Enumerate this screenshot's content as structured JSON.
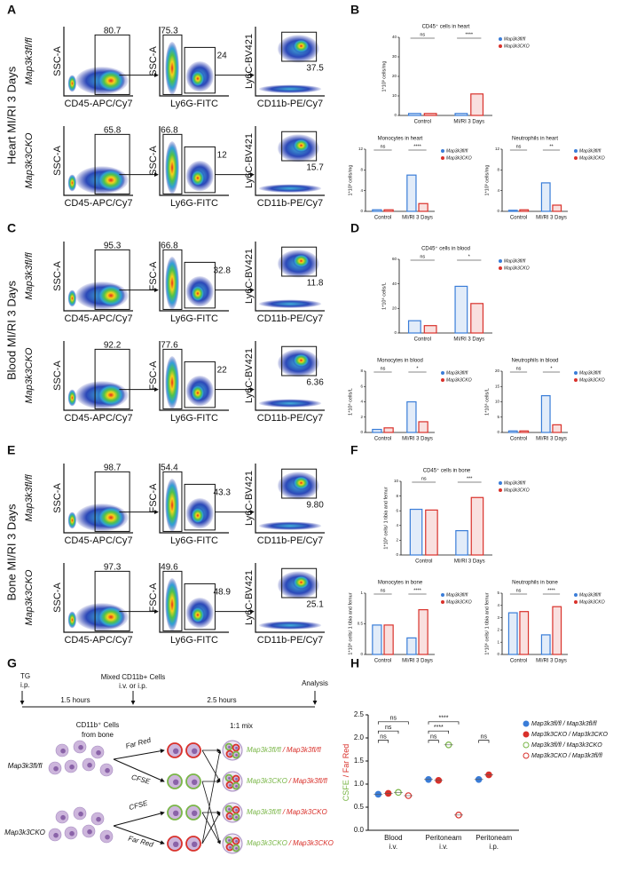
{
  "panel_letters": [
    "A",
    "B",
    "C",
    "D",
    "E",
    "F",
    "G",
    "H"
  ],
  "flow": [
    {
      "tissue": "Heart MI/RI 3 Days",
      "genotypes": [
        "Map3k3fl/fl",
        "Map3k3CKO"
      ],
      "xlabels": [
        "CD45-APC/Cy7",
        "Ly6G-FITC",
        "CD11b-PE/Cy7"
      ],
      "ylabels": [
        "SSC-A",
        "SSC-A",
        "Ly6C-BV421"
      ],
      "gates": [
        [
          [
            "80.7"
          ],
          [
            "75.3",
            "24"
          ],
          [
            "37.5"
          ]
        ],
        [
          [
            "65.8"
          ],
          [
            "66.8",
            "12"
          ],
          [
            "15.7"
          ]
        ]
      ]
    },
    {
      "tissue": "Blood MI/RI 3 Days",
      "genotypes": [
        "Map3k3fl/fl",
        "Map3k3CKO"
      ],
      "xlabels": [
        "CD45-APC/Cy7",
        "Ly6G-FITC",
        "CD11b-PE/Cy7"
      ],
      "ylabels": [
        "SSC-A",
        "FSC-A",
        "Ly6C-BV421"
      ],
      "gates": [
        [
          [
            "95.3"
          ],
          [
            "66.8",
            "32.8"
          ],
          [
            "11.8"
          ]
        ],
        [
          [
            "92.2"
          ],
          [
            "77.6",
            "22"
          ],
          [
            "6.36"
          ]
        ]
      ]
    },
    {
      "tissue": "Bone MI/RI 3 Days",
      "genotypes": [
        "Map3k3fl/fl",
        "Map3k3CKO"
      ],
      "xlabels": [
        "CD45-APC/Cy7",
        "Ly6G-FITC",
        "CD11b-PE/Cy7"
      ],
      "ylabels": [
        "SSC-A",
        "FSC-A",
        "Ly6C-BV421"
      ],
      "gates": [
        [
          [
            "98.7"
          ],
          [
            "54.4",
            "43.3"
          ],
          [
            "9.80"
          ]
        ],
        [
          [
            "97.3"
          ],
          [
            "49.6",
            "48.9"
          ],
          [
            "25.1"
          ]
        ]
      ]
    }
  ],
  "chart_data": [
    {
      "type": "bar",
      "title": "CD45⁺ cells in heart",
      "ylabel": "1*10³ cells/mg",
      "categories": [
        "Control",
        "MI/RI 3 Days"
      ],
      "series": [
        {
          "name": "Map3k3fl/fl",
          "color": "#3a7dd8",
          "values": [
            1,
            1
          ]
        },
        {
          "name": "Map3k3CKO",
          "color": "#d9312b",
          "values": [
            1,
            11
          ]
        }
      ],
      "ylim": [
        0,
        40
      ],
      "yticks": [
        0,
        10,
        20,
        30,
        40
      ],
      "significance": [
        "ns",
        "****"
      ]
    },
    {
      "type": "bar",
      "title": "Monocytes in heart",
      "ylabel": "1*10³ cells/mg",
      "categories": [
        "Control",
        "MI/RI 3 Days"
      ],
      "series": [
        {
          "name": "Map3k3fl/fl",
          "color": "#3a7dd8",
          "values": [
            0.3,
            7
          ]
        },
        {
          "name": "Map3k3CKO",
          "color": "#d9312b",
          "values": [
            0.3,
            1.5
          ]
        }
      ],
      "ylim": [
        0,
        12
      ],
      "yticks": [
        0,
        4,
        8,
        12
      ],
      "significance": [
        "ns",
        "****"
      ]
    },
    {
      "type": "bar",
      "title": "Neutrophils in heart",
      "ylabel": "1*10³ cells/mg",
      "categories": [
        "Control",
        "MI/RI 3 Days"
      ],
      "series": [
        {
          "name": "Map3k3fl/fl",
          "color": "#3a7dd8",
          "values": [
            0.2,
            5.5
          ]
        },
        {
          "name": "Map3k3CKO",
          "color": "#d9312b",
          "values": [
            0.3,
            1.2
          ]
        }
      ],
      "ylim": [
        0,
        12
      ],
      "yticks": [
        0,
        4,
        8,
        12
      ],
      "significance": [
        "ns",
        "**"
      ]
    },
    {
      "type": "bar",
      "title": "CD45⁺ cells in blood",
      "ylabel": "1*10⁶ cells/L",
      "categories": [
        "Control",
        "MI/RI 3 Days"
      ],
      "series": [
        {
          "name": "Map3k3fl/fl",
          "color": "#3a7dd8",
          "values": [
            10,
            38
          ]
        },
        {
          "name": "Map3k3CKO",
          "color": "#d9312b",
          "values": [
            6,
            24
          ]
        }
      ],
      "ylim": [
        0,
        60
      ],
      "yticks": [
        0,
        20,
        40,
        60
      ],
      "significance": [
        "ns",
        "*"
      ]
    },
    {
      "type": "bar",
      "title": "Monocytes in blood",
      "ylabel": "1*10⁶ cells/L",
      "categories": [
        "Control",
        "MI/RI 3 Days"
      ],
      "series": [
        {
          "name": "Map3k3fl/fl",
          "color": "#3a7dd8",
          "values": [
            0.4,
            4
          ]
        },
        {
          "name": "Map3k3CKO",
          "color": "#d9312b",
          "values": [
            0.6,
            1.4
          ]
        }
      ],
      "ylim": [
        0,
        8
      ],
      "yticks": [
        0,
        2,
        4,
        6,
        8
      ],
      "significance": [
        "ns",
        "*"
      ]
    },
    {
      "type": "bar",
      "title": "Neutrophils in blood",
      "ylabel": "1*10⁶ cells/L",
      "categories": [
        "Control",
        "MI/RI 3 Days"
      ],
      "series": [
        {
          "name": "Map3k3fl/fl",
          "color": "#3a7dd8",
          "values": [
            0.5,
            12
          ]
        },
        {
          "name": "Map3k3CKO",
          "color": "#d9312b",
          "values": [
            0.5,
            2.5
          ]
        }
      ],
      "ylim": [
        0,
        20
      ],
      "yticks": [
        0,
        5,
        10,
        15,
        20
      ],
      "significance": [
        "ns",
        "*"
      ]
    },
    {
      "type": "bar",
      "title": "CD45⁺ cells in bone",
      "ylabel": "1*10⁶ cells/ 1 tibia and femur",
      "categories": [
        "Control",
        "MI/RI 3 Days"
      ],
      "series": [
        {
          "name": "Map3k3fl/fl",
          "color": "#3a7dd8",
          "values": [
            6.2,
            3.3
          ]
        },
        {
          "name": "Map3k3CKO",
          "color": "#d9312b",
          "values": [
            6.1,
            7.8
          ]
        }
      ],
      "ylim": [
        0,
        10
      ],
      "yticks": [
        0,
        2,
        4,
        6,
        8,
        10
      ],
      "significance": [
        "ns",
        "***"
      ]
    },
    {
      "type": "bar",
      "title": "Monocytes in bone",
      "ylabel": "1*10⁶ cells/ 1 tibia and femur",
      "categories": [
        "Control",
        "MI/RI 3 Days"
      ],
      "series": [
        {
          "name": "Map3k3fl/fl",
          "color": "#3a7dd8",
          "values": [
            0.48,
            0.27
          ]
        },
        {
          "name": "Map3k3CKO",
          "color": "#d9312b",
          "values": [
            0.48,
            0.73
          ]
        }
      ],
      "ylim": [
        0,
        1
      ],
      "yticks": [
        0,
        0.5,
        1
      ],
      "significance": [
        "ns",
        "****"
      ]
    },
    {
      "type": "bar",
      "title": "Neutrophils in bone",
      "ylabel": "1*10⁶ cells/ 1 tibia and femur",
      "categories": [
        "Control",
        "MI/RI 3 Days"
      ],
      "series": [
        {
          "name": "Map3k3fl/fl",
          "color": "#3a7dd8",
          "values": [
            3.4,
            1.6
          ]
        },
        {
          "name": "Map3k3CKO",
          "color": "#d9312b",
          "values": [
            3.5,
            3.9
          ]
        }
      ],
      "ylim": [
        0,
        5
      ],
      "yticks": [
        0,
        1,
        2,
        3,
        4,
        5
      ],
      "significance": [
        "ns",
        "****"
      ]
    },
    {
      "type": "dot",
      "ylabel_parts": [
        "CSFE",
        "/ Far Red"
      ],
      "ylabel_colors": [
        "#7ab648",
        "#d9312b"
      ],
      "categories": [
        "Blood",
        "Peritoneam",
        "Peritoneam"
      ],
      "routes": [
        "i.v.",
        "i.v.",
        "i.p."
      ],
      "series": [
        {
          "name": "Map3k3fl/fl / Map3k3fl/fl",
          "color": "#3a7dd8",
          "filled": true,
          "values": [
            0.78,
            1.1,
            1.1
          ]
        },
        {
          "name": "Map3k3CKO / Map3k3CKO",
          "color": "#d9312b",
          "filled": true,
          "values": [
            0.8,
            1.08,
            1.2
          ]
        },
        {
          "name": "Map3k3fl/fl / Map3k3CKO",
          "color": "#7ab648",
          "filled": false,
          "values": [
            0.82,
            1.85,
            null
          ]
        },
        {
          "name": "Map3k3CKO / Map3k3fl/fl",
          "color": "#d9312b",
          "filled": false,
          "values": [
            0.75,
            0.33,
            null
          ]
        }
      ],
      "ylim": [
        0,
        2.5
      ],
      "yticks": [
        {
          "value": 0,
          "label": "0.0"
        },
        {
          "value": 0.5,
          "label": "0.5"
        },
        {
          "value": 1,
          "label": "1.0"
        },
        {
          "value": 1.5,
          "label": "1.5"
        },
        {
          "value": 2,
          "label": "2.0"
        },
        {
          "value": 2.5,
          "label": "2.5"
        }
      ],
      "annotations": [
        "ns",
        "ns",
        "ns",
        "****",
        "****",
        "ns",
        "ns"
      ]
    }
  ],
  "schematic": {
    "timeline": [
      "TG",
      "i.p.",
      "1.5 hours",
      "Mixed CD11b+ Cells",
      "i.v. or i.p.",
      "2.5 hours",
      "Analysis"
    ],
    "source": [
      "CD11b⁺ Cells",
      "from bone"
    ],
    "genotypes": [
      "Map3k3fl/fl",
      "Map3k3CKO"
    ],
    "dyes": [
      "Far Red",
      "CFSE",
      "CFSE",
      "Far Red"
    ],
    "mix_title": "1:1 mix",
    "mixes": [
      [
        "Map3k3fl/fl",
        "/",
        "Map3k3fl/fl"
      ],
      [
        "Map3k3CKO",
        "/",
        "Map3k3fl/fl"
      ],
      [
        "Map3k3fl/fl",
        "/",
        "Map3k3CKO"
      ],
      [
        "Map3k3CKO",
        "/",
        "Map3k3CKO"
      ]
    ]
  }
}
